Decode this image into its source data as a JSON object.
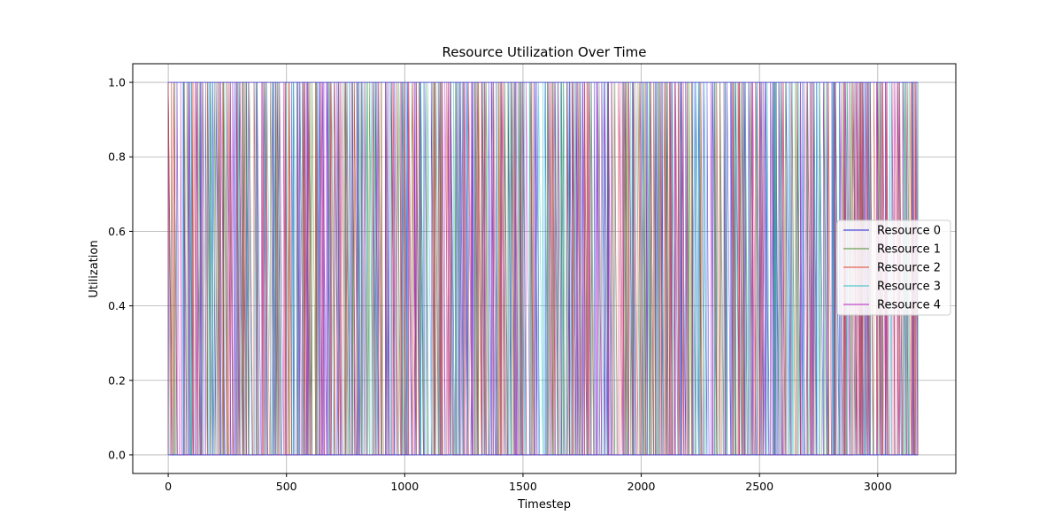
{
  "chart_data": {
    "type": "line",
    "title": "Resource Utilization Over Time",
    "xlabel": "Timestep",
    "ylabel": "Utilization",
    "xlim": [
      -150,
      3330
    ],
    "ylim": [
      -0.05,
      1.05
    ],
    "xticks": [
      0,
      500,
      1000,
      1500,
      2000,
      2500,
      3000
    ],
    "yticks": [
      0.0,
      0.2,
      0.4,
      0.6,
      0.8,
      1.0
    ],
    "xtick_labels": [
      "0",
      "500",
      "1000",
      "1500",
      "2000",
      "2500",
      "3000"
    ],
    "ytick_labels": [
      "0.0",
      "0.2",
      "0.4",
      "0.6",
      "0.8",
      "1.0"
    ],
    "x_range": [
      0,
      3170
    ],
    "value_levels": [
      0,
      1
    ],
    "grid": true,
    "legend_position": "center-right",
    "series": [
      {
        "name": "Resource 0",
        "color": "#1f1fd6"
      },
      {
        "name": "Resource 1",
        "color": "#4d8a2e"
      },
      {
        "name": "Resource 2",
        "color": "#e0402a"
      },
      {
        "name": "Resource 3",
        "color": "#2bbcc4"
      },
      {
        "name": "Resource 4",
        "color": "#b51fc4"
      }
    ]
  }
}
